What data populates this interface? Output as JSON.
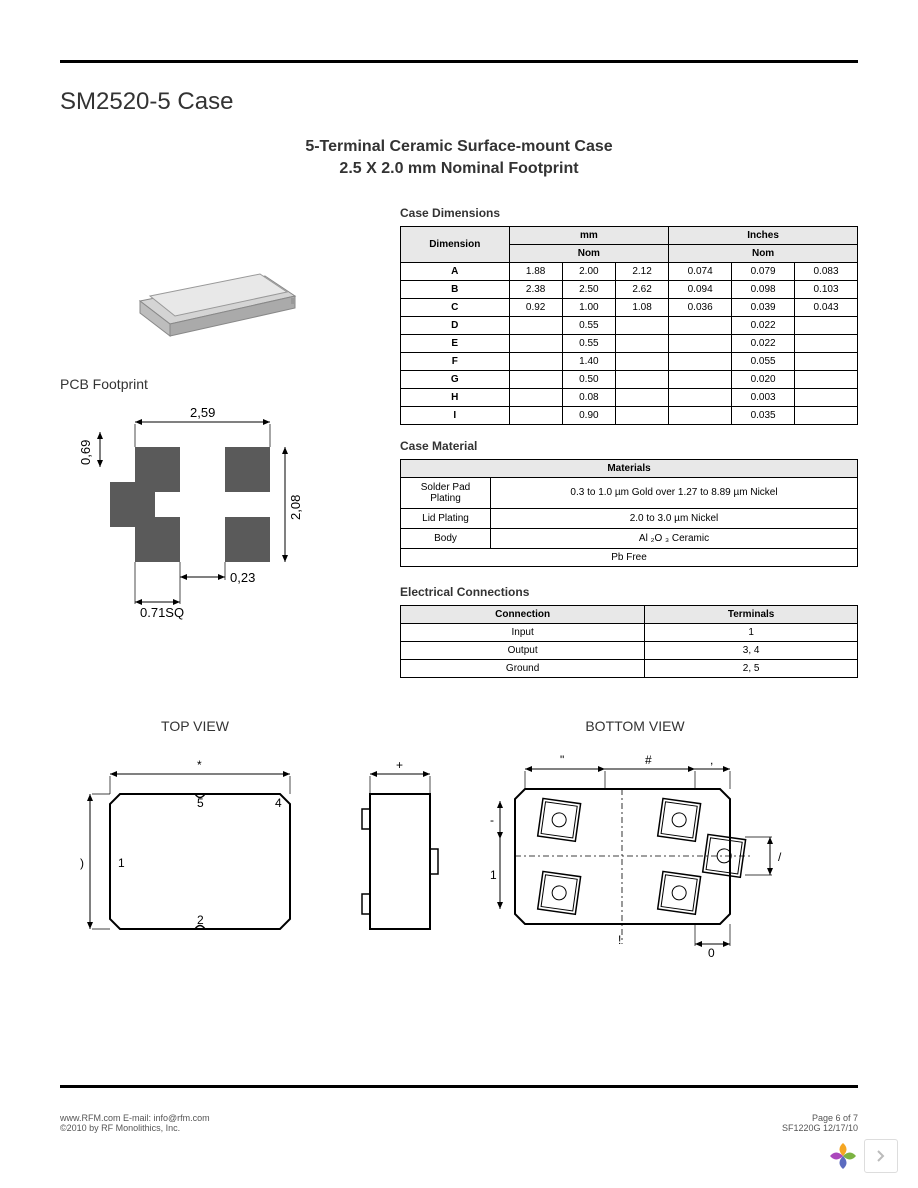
{
  "title": "SM2520-5 Case",
  "subtitle_line1": "5-Terminal Ceramic Surface-mount Case",
  "subtitle_line2": "2.5 X 2.0 mm Nominal Footprint",
  "pcb_title": "PCB Footprint",
  "case_dimensions": {
    "header": "Case Dimensions",
    "col_dimension": "Dimension",
    "col_mm": "mm",
    "col_inches": "Inches",
    "col_nom": "Nom",
    "rows": [
      {
        "dim": "A",
        "mm_min": "1.88",
        "mm_nom": "2.00",
        "mm_max": "2.12",
        "in_min": "0.074",
        "in_nom": "0.079",
        "in_max": "0.083"
      },
      {
        "dim": "B",
        "mm_min": "2.38",
        "mm_nom": "2.50",
        "mm_max": "2.62",
        "in_min": "0.094",
        "in_nom": "0.098",
        "in_max": "0.103"
      },
      {
        "dim": "C",
        "mm_min": "0.92",
        "mm_nom": "1.00",
        "mm_max": "1.08",
        "in_min": "0.036",
        "in_nom": "0.039",
        "in_max": "0.043"
      },
      {
        "dim": "D",
        "mm_min": "",
        "mm_nom": "0.55",
        "mm_max": "",
        "in_min": "",
        "in_nom": "0.022",
        "in_max": ""
      },
      {
        "dim": "E",
        "mm_min": "",
        "mm_nom": "0.55",
        "mm_max": "",
        "in_min": "",
        "in_nom": "0.022",
        "in_max": ""
      },
      {
        "dim": "F",
        "mm_min": "",
        "mm_nom": "1.40",
        "mm_max": "",
        "in_min": "",
        "in_nom": "0.055",
        "in_max": ""
      },
      {
        "dim": "G",
        "mm_min": "",
        "mm_nom": "0.50",
        "mm_max": "",
        "in_min": "",
        "in_nom": "0.020",
        "in_max": ""
      },
      {
        "dim": "H",
        "mm_min": "",
        "mm_nom": "0.08",
        "mm_max": "",
        "in_min": "",
        "in_nom": "0.003",
        "in_max": ""
      },
      {
        "dim": "I",
        "mm_min": "",
        "mm_nom": "0.90",
        "mm_max": "",
        "in_min": "",
        "in_nom": "0.035",
        "in_max": ""
      }
    ]
  },
  "case_material": {
    "header": "Case Material",
    "col_materials": "Materials",
    "rows": [
      {
        "label": "Solder Pad Plating",
        "val": "0.3 to 1.0 µm Gold over 1.27 to 8.89 µm Nickel"
      },
      {
        "label": "Lid Plating",
        "val": "2.0 to 3.0 µm Nickel"
      },
      {
        "label": "Body",
        "val": "Al ₂O ₃ Ceramic"
      },
      {
        "label": "",
        "val": "Pb Free"
      }
    ]
  },
  "electrical": {
    "header": "Electrical Connections",
    "col_connection": "Connection",
    "col_terminals": "Terminals",
    "rows": [
      {
        "conn": "Input",
        "term": "1"
      },
      {
        "conn": "Output",
        "term": "3, 4"
      },
      {
        "conn": "Ground",
        "term": "2, 5"
      }
    ]
  },
  "views": {
    "top": "TOP VIEW",
    "bottom": "BOTTOM VIEW"
  },
  "pcb_dims": {
    "w": "2,59",
    "h": "2,08",
    "top_off": "0,69",
    "side": "0,23",
    "sq": "0.71SQ"
  },
  "top_view": {
    "pins": {
      "p1": "1",
      "p2": "2",
      "p4": "4",
      "p5": "5"
    },
    "marks": {
      "top": "*",
      "left": ")",
      "right": "+"
    }
  },
  "bottom_view": {
    "marks": {
      "top_l": "\"",
      "top_c": "#",
      "top_r": ",",
      "left_t": "-",
      "left_b": "1",
      "bot_l": "!",
      "bot_r": "0",
      "right": "/"
    }
  },
  "footer": {
    "left_line1": "www.RFM.com   E-mail: info@rfm.com",
    "left_line2": "©2010 by RF Monolithics, Inc.",
    "right_line1": "Page 6 of 7",
    "right_line2": "SF1220G  12/17/10"
  },
  "colors": {
    "text": "#333333",
    "border": "#000000",
    "thead_bg": "#e8e8e8",
    "pad": "#5a5a5a",
    "chip_light": "#e8e8e8",
    "chip_dark": "#bdbdbd",
    "logo": [
      "#f5a623",
      "#7cb342",
      "#5c6bc0",
      "#ab47bc"
    ]
  }
}
